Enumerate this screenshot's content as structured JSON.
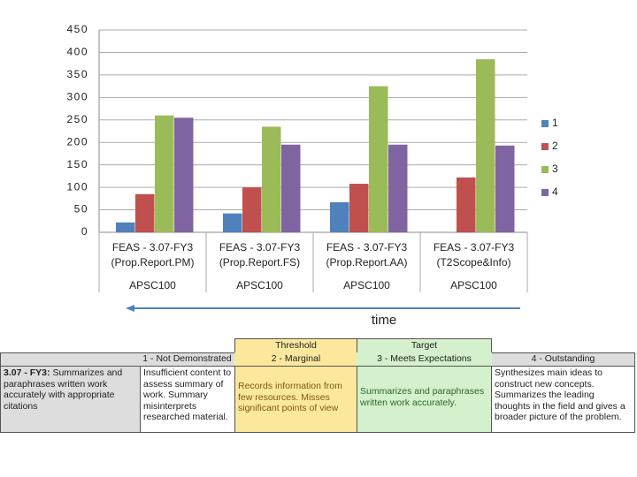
{
  "chart_data": {
    "type": "bar",
    "categories": [
      "FEAS - 3.07-FY3",
      "FEAS - 3.07-FY3",
      "FEAS - 3.07-FY3",
      "FEAS - 3.07-FY3"
    ],
    "subcategories": [
      "(Prop.Report.PM)",
      "(Prop.Report.FS)",
      "(Prop.Report.AA)",
      "(T2Scope&Info)"
    ],
    "category_group": [
      "APSC100",
      "APSC100",
      "APSC100",
      "APSC100"
    ],
    "series": [
      {
        "name": "1",
        "color": "#4f81bd",
        "values": [
          22,
          42,
          67,
          0
        ]
      },
      {
        "name": "2",
        "color": "#c0504d",
        "values": [
          85,
          100,
          108,
          122
        ]
      },
      {
        "name": "3",
        "color": "#9bbb59",
        "values": [
          260,
          235,
          325,
          385
        ]
      },
      {
        "name": "4",
        "color": "#8064a2",
        "values": [
          255,
          195,
          195,
          193
        ]
      }
    ],
    "ylim": [
      0,
      450
    ],
    "yticks": [
      0,
      50,
      100,
      150,
      200,
      250,
      300,
      350,
      400,
      450
    ],
    "grid": true,
    "legend": "right",
    "annotation": "time"
  },
  "rubric": {
    "bands": [
      "Threshold",
      "Target"
    ],
    "headers": [
      "1 - Not Demonstrated",
      "2 - Marginal",
      "3 - Meets Expectations",
      "4 - Outstanding"
    ],
    "criterion_code": "3.07 - FY3:",
    "criterion_text": "Summarizes and paraphrases written work accurately with appropriate citations",
    "descriptions": [
      "Insufficient content to assess summary of work. Summary misinterprets researched material.",
      "Records information from few resources. Misses significant points of view",
      "Summarizes and paraphrases written work accurately.",
      "Synthesizes main ideas to construct new concepts. Summarizes the leading thoughts in the field and gives a broader picture of the problem."
    ]
  }
}
